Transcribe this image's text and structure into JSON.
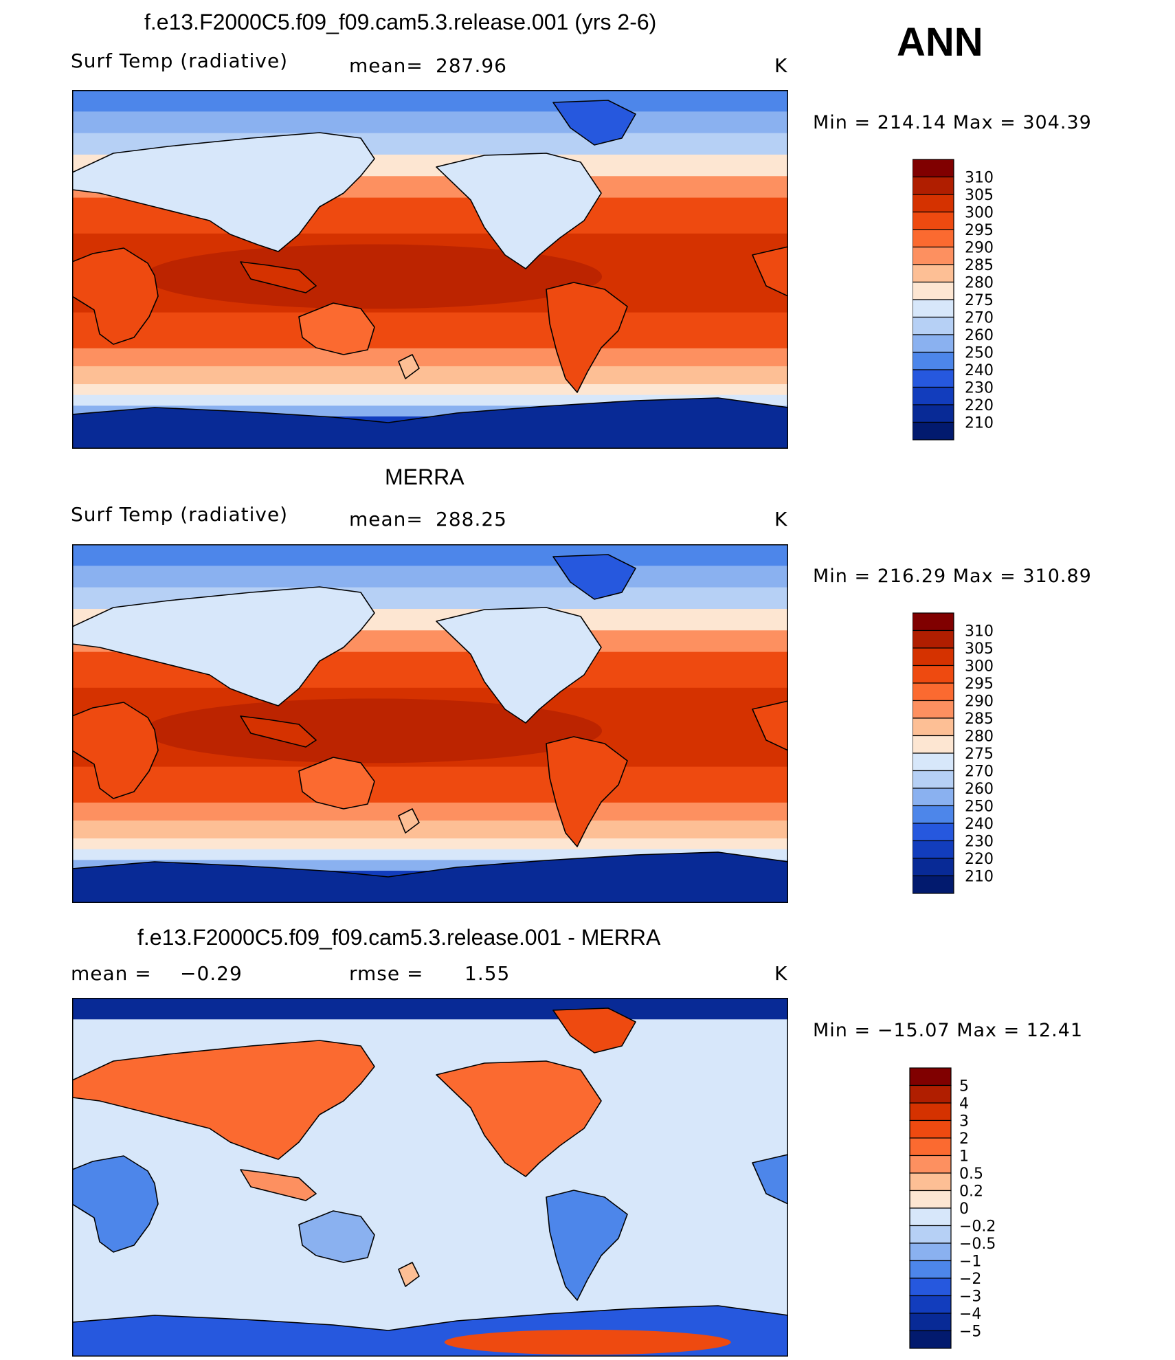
{
  "season": "ANN",
  "chart_data": [
    {
      "type": "heatmap",
      "title": "f.e13.F2000C5.f09_f09.cam5.3.release.001 (yrs 2-6)",
      "variable": "Surf Temp (radiative)",
      "stat_label": "mean=",
      "stat_value": "287.96",
      "units": "K",
      "min_label": "Min  =  214.14  Max  =  304.39",
      "min": 214.14,
      "max": 304.39,
      "colorbar_levels": [
        "310",
        "305",
        "300",
        "295",
        "290",
        "285",
        "280",
        "275",
        "270",
        "260",
        "250",
        "240",
        "230",
        "220",
        "210"
      ],
      "colorbar_colors": [
        "#800000",
        "#b01e00",
        "#d53200",
        "#ee4a10",
        "#fb6a30",
        "#fd9060",
        "#fdbf95",
        "#fde6d2",
        "#d7e7fa",
        "#b6d0f5",
        "#8ab1f0",
        "#4d86ea",
        "#2658de",
        "#123dbd",
        "#082a96",
        "#021a6e"
      ]
    },
    {
      "type": "heatmap",
      "title": "MERRA",
      "variable": "Surf Temp (radiative)",
      "stat_label": "mean=",
      "stat_value": "288.25",
      "units": "K",
      "min_label": "Min  =  216.29  Max  =  310.89",
      "min": 216.29,
      "max": 310.89,
      "colorbar_levels": [
        "310",
        "305",
        "300",
        "295",
        "290",
        "285",
        "280",
        "275",
        "270",
        "260",
        "250",
        "240",
        "230",
        "220",
        "210"
      ],
      "colorbar_colors": [
        "#800000",
        "#b01e00",
        "#d53200",
        "#ee4a10",
        "#fb6a30",
        "#fd9060",
        "#fdbf95",
        "#fde6d2",
        "#d7e7fa",
        "#b6d0f5",
        "#8ab1f0",
        "#4d86ea",
        "#2658de",
        "#123dbd",
        "#082a96",
        "#021a6e"
      ]
    },
    {
      "type": "heatmap",
      "title": "f.e13.F2000C5.f09_f09.cam5.3.release.001 - MERRA",
      "stat_label": "mean =",
      "stat_value": "−0.29",
      "rmse_label": "rmse =",
      "rmse_value": "1.55",
      "units": "K",
      "min_label": "Min  =  −15.07  Max  =   12.41",
      "min": -15.07,
      "max": 12.41,
      "colorbar_levels": [
        "5",
        "4",
        "3",
        "2",
        "1",
        "0.5",
        "0.2",
        "0",
        "−0.2",
        "−0.5",
        "−1",
        "−2",
        "−3",
        "−4",
        "−5"
      ],
      "colorbar_colors": [
        "#800000",
        "#b01e00",
        "#d53200",
        "#ee4a10",
        "#fb6a30",
        "#fd9060",
        "#fdbf95",
        "#fde6d2",
        "#d7e7fa",
        "#b6d0f5",
        "#8ab1f0",
        "#4d86ea",
        "#2658de",
        "#123dbd",
        "#082a96",
        "#021a6e"
      ]
    }
  ]
}
